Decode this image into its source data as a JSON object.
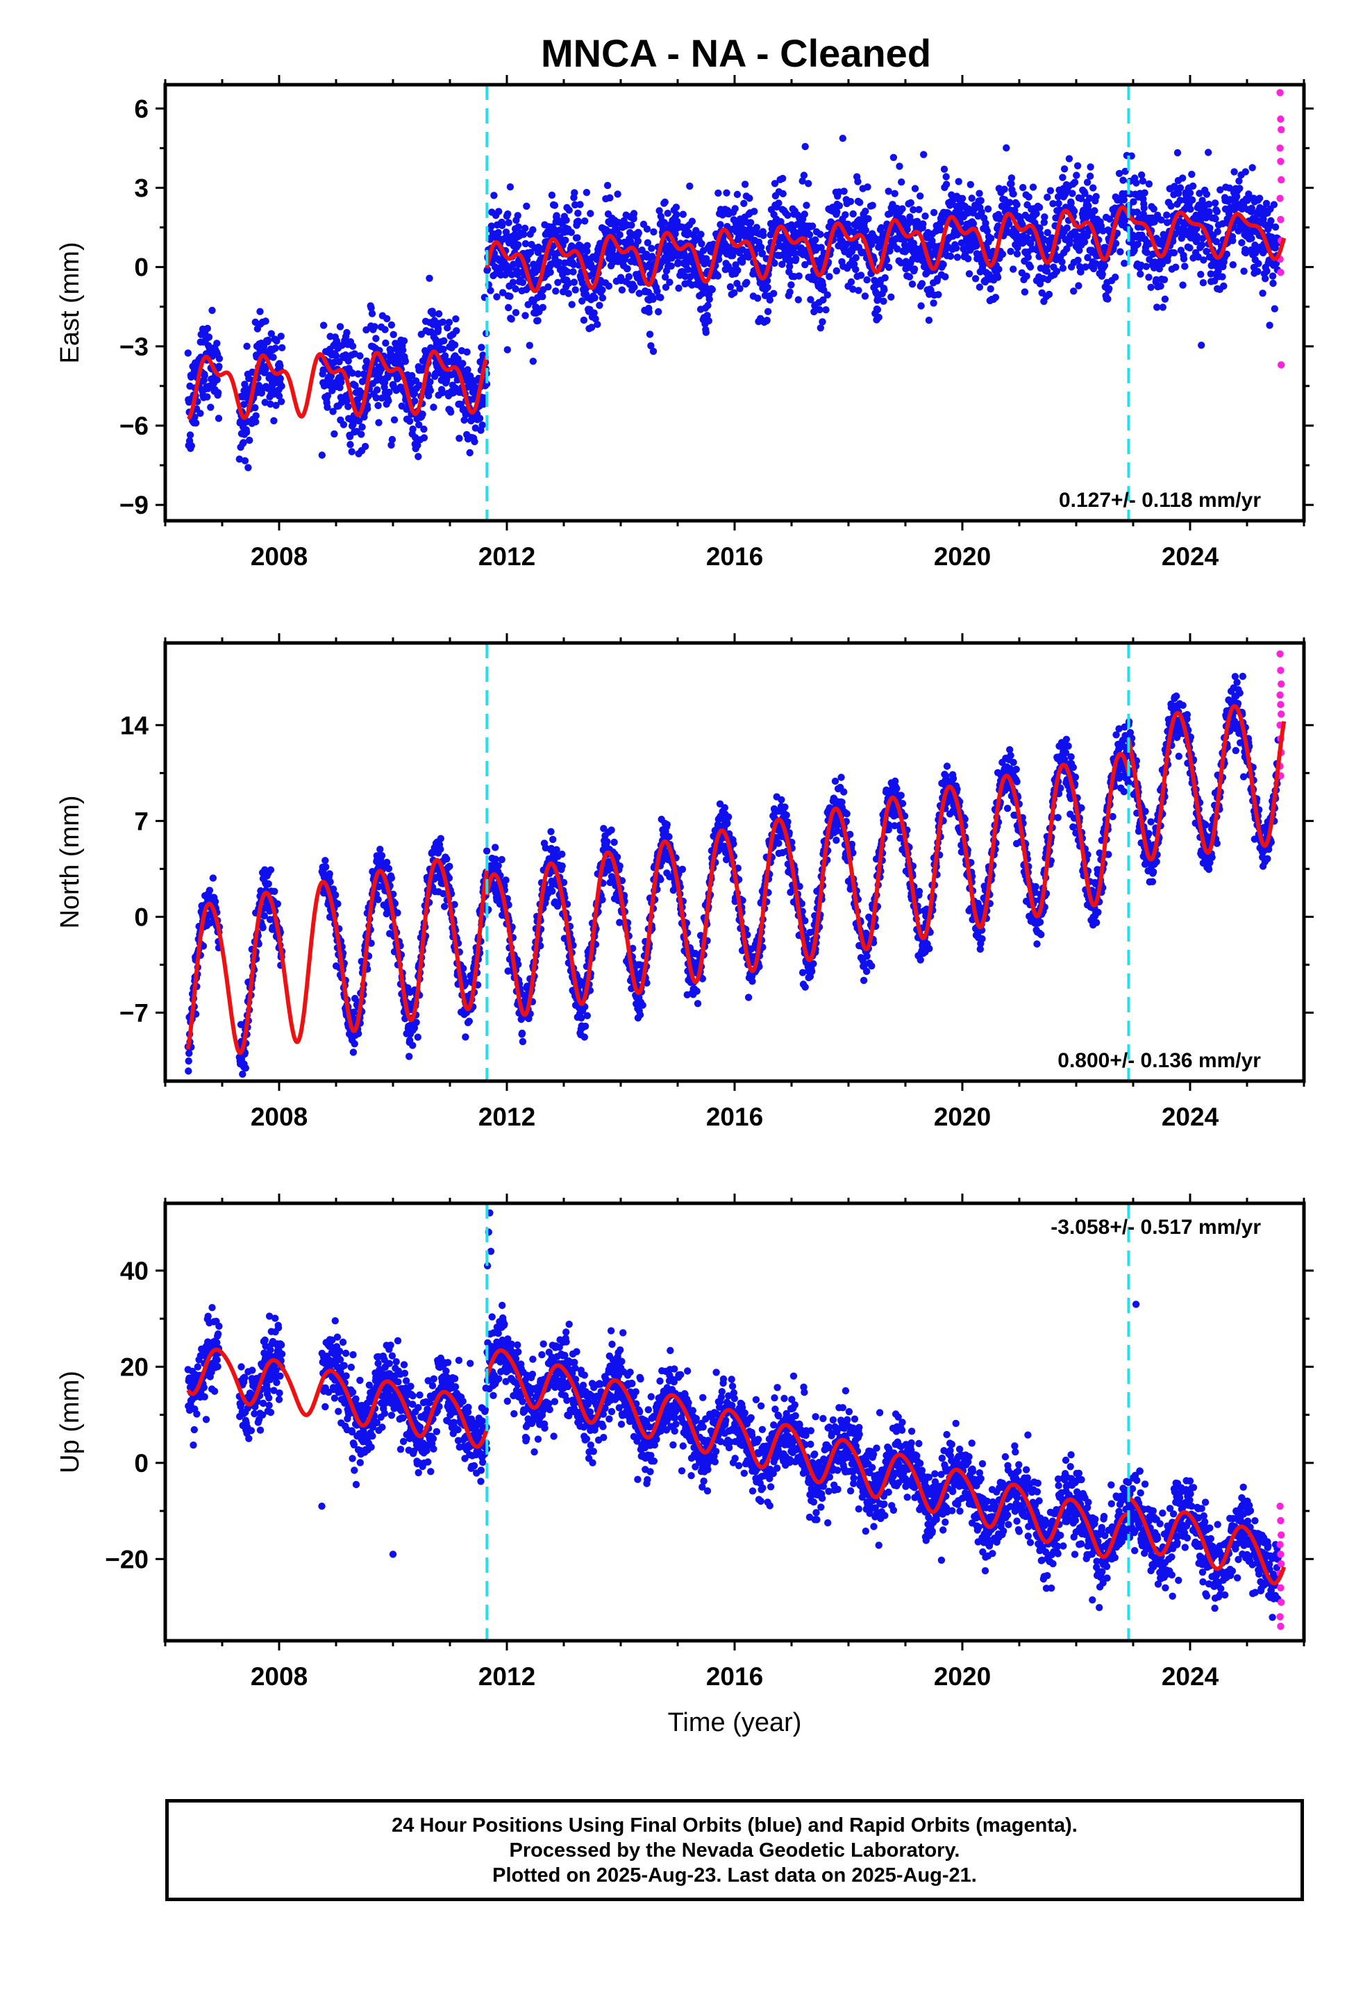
{
  "colors": {
    "final_orbits": "#1010ee",
    "rapid_orbits": "#ff22dd",
    "model_fit": "#ee1111",
    "equipment_change": "#22e0ee",
    "frame": "#000000"
  },
  "caption": {
    "line1": "24 Hour Positions Using Final Orbits (blue) and Rapid Orbits (magenta).",
    "line2": "Processed by the Nevada Geodetic Laboratory.",
    "line3": "Plotted on 2025-Aug-23. Last data on 2025-Aug-21."
  },
  "chart_data": [
    {
      "type": "scatter",
      "panel": "east",
      "title": "MNCA  - NA - Cleaned",
      "xlabel": "",
      "ylabel": "East (mm)",
      "xlim": [
        2006.0,
        2026.0
      ],
      "ylim": [
        -9.6,
        6.9
      ],
      "xticks": [
        2008,
        2012,
        2016,
        2020,
        2024
      ],
      "yticks": [
        6,
        3,
        0,
        -3,
        -6,
        -9
      ],
      "rate_text": "0.127+/- 0.118 mm/yr",
      "rate_position": "bottom-right",
      "grid": false,
      "legend": "none",
      "breaks": [
        2011.65,
        2022.92
      ],
      "model": {
        "segments": [
          {
            "start": 2006.4,
            "end": 2011.65,
            "offset": -4.4,
            "trend": 0.05,
            "annual_amp": 0.9,
            "semiannual_amp": 0.5,
            "phase": 0.6
          },
          {
            "start": 2011.65,
            "end": 2022.92,
            "offset": 0.1,
            "trend": 0.12,
            "annual_amp": 0.7,
            "semiannual_amp": 0.45,
            "phase": 0.7
          },
          {
            "start": 2022.92,
            "end": 2025.65,
            "offset": 1.4,
            "trend": -0.05,
            "annual_amp": 0.7,
            "semiannual_amp": 0.3,
            "phase": 0.7
          }
        ]
      },
      "scatter_sigma": 0.9,
      "data_gaps": [
        [
          2006.95,
          2007.3
        ],
        [
          2008.05,
          2008.75
        ]
      ],
      "rapid_points": [
        6.6,
        5.6,
        5.2,
        4.5,
        4.0,
        3.3,
        2.6,
        1.8,
        1.0,
        0.3,
        -0.2,
        -3.7
      ]
    },
    {
      "type": "scatter",
      "panel": "north",
      "title": "",
      "xlabel": "",
      "ylabel": "North (mm)",
      "xlim": [
        2006.0,
        2026.0
      ],
      "ylim": [
        -12.0,
        20.0
      ],
      "xticks": [
        2008,
        2012,
        2016,
        2020,
        2024
      ],
      "yticks": [
        14,
        7,
        0,
        -7
      ],
      "rate_text": "0.800+/- 0.136 mm/yr",
      "rate_position": "bottom-right",
      "grid": false,
      "legend": "none",
      "breaks": [
        2011.65,
        2022.92
      ],
      "model": {
        "segments": [
          {
            "start": 2006.4,
            "end": 2011.65,
            "offset": -4.6,
            "trend": 0.8,
            "annual_amp": 5.6,
            "semiannual_amp": 0.6,
            "phase": 0.55
          },
          {
            "start": 2011.65,
            "end": 2022.92,
            "offset": -2.0,
            "trend": 0.8,
            "annual_amp": 5.3,
            "semiannual_amp": 0.5,
            "phase": 0.55
          },
          {
            "start": 2022.92,
            "end": 2025.65,
            "offset": 9.5,
            "trend": 0.5,
            "annual_amp": 5.2,
            "semiannual_amp": 0.4,
            "phase": 0.55
          }
        ]
      },
      "scatter_sigma": 1.0,
      "data_gaps": [
        [
          2006.95,
          2007.3
        ],
        [
          2008.05,
          2008.75
        ]
      ],
      "rapid_points": [
        19.2,
        18.0,
        17.0,
        16.2,
        15.5,
        14.8,
        14.0,
        13.0,
        12.0,
        11.0,
        10.3
      ]
    },
    {
      "type": "scatter",
      "panel": "up",
      "title": "",
      "xlabel": "Time (year)",
      "ylabel": "Up (mm)",
      "xlim": [
        2006.0,
        2026.0
      ],
      "ylim": [
        -37.0,
        54.0
      ],
      "xticks": [
        2008,
        2012,
        2016,
        2020,
        2024
      ],
      "yticks": [
        40,
        20,
        0,
        -20
      ],
      "rate_text": "-3.058+/- 0.517 mm/yr",
      "rate_position": "top-right",
      "grid": false,
      "legend": "none",
      "breaks": [
        2011.65,
        2022.92
      ],
      "model": {
        "segments": [
          {
            "start": 2006.4,
            "end": 2011.65,
            "offset": 20.0,
            "trend": -2.2,
            "annual_amp": 5.0,
            "semiannual_amp": 0.6,
            "phase": 0.7
          },
          {
            "start": 2011.65,
            "end": 2022.92,
            "offset": 19.5,
            "trend": -3.1,
            "annual_amp": 5.0,
            "semiannual_amp": 0.6,
            "phase": 0.7
          },
          {
            "start": 2022.92,
            "end": 2025.65,
            "offset": -12.0,
            "trend": -3.0,
            "annual_amp": 5.0,
            "semiannual_amp": 0.5,
            "phase": 0.7
          }
        ]
      },
      "scatter_sigma": 4.0,
      "data_gaps": [
        [
          2006.95,
          2007.3
        ],
        [
          2008.05,
          2008.75
        ]
      ],
      "rapid_points": [
        -9.0,
        -12.0,
        -15.0,
        -17.0,
        -19.0,
        -21.0,
        -23.0,
        -26.0,
        -29.0,
        -32.0,
        -34.0
      ],
      "outliers": [
        [
          2011.7,
          52.0
        ],
        [
          2011.68,
          48.0
        ],
        [
          2011.72,
          44.0
        ],
        [
          2011.66,
          41.0
        ],
        [
          2023.05,
          33.0
        ],
        [
          2010.0,
          -19.0
        ],
        [
          2008.75,
          -9.0
        ]
      ]
    }
  ]
}
